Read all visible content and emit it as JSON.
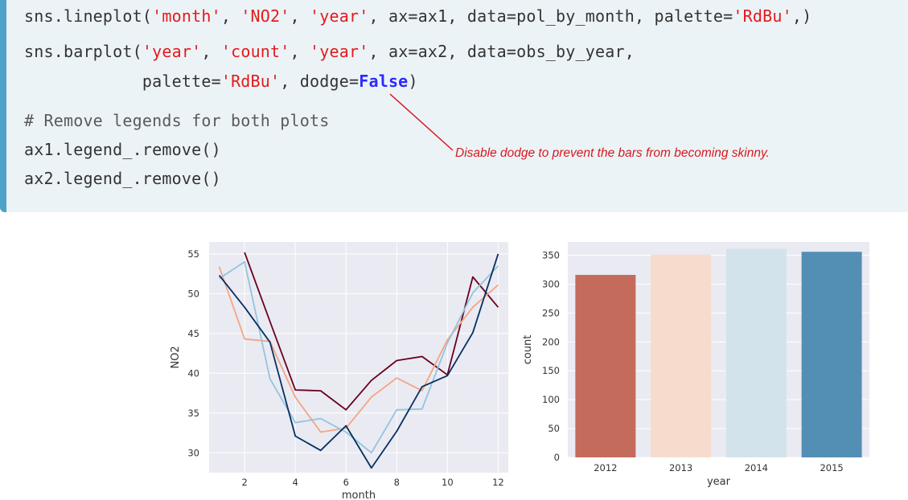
{
  "code": {
    "line1": {
      "p1": "sns.lineplot(",
      "s1": "'month'",
      "p2": ", ",
      "s2": "'NO2'",
      "p3": ", ",
      "s3": "'year'",
      "p4": ", ax=ax1, data=pol_by_month, palette=",
      "s4": "'RdBu'",
      "p5": ",)"
    },
    "line2": {
      "p1": "sns.barplot(",
      "s1": "'year'",
      "p2": ", ",
      "s2": "'count'",
      "p3": ", ",
      "s3": "'year'",
      "p4": ", ax=ax2, data=obs_by_year,"
    },
    "line3": {
      "indent": "            palette=",
      "s1": "'RdBu'",
      "p2": ", dodge=",
      "kw": "False",
      "p3": ")"
    },
    "line4": "# Remove legends for both plots",
    "line5": "ax1.legend_.remove()",
    "line6": "ax2.legend_.remove()"
  },
  "annotation": {
    "text": "Disable dodge to prevent the bars from becoming skinny.",
    "color": "#d7191c"
  },
  "chart_data": [
    {
      "type": "line",
      "xlabel": "month",
      "ylabel": "NO2",
      "xlim": [
        0.6,
        12.4
      ],
      "ylim": [
        27.5,
        56.5
      ],
      "xticks": [
        2,
        4,
        6,
        8,
        10,
        12
      ],
      "yticks": [
        30,
        35,
        40,
        45,
        50,
        55
      ],
      "grid": true,
      "legend": "none",
      "x": [
        1,
        2,
        3,
        4,
        5,
        6,
        7,
        8,
        9,
        10,
        11,
        12
      ],
      "series": [
        {
          "color": "#67001f",
          "values": [
            null,
            55.2,
            46.5,
            37.9,
            37.8,
            35.4,
            39.1,
            41.6,
            42.1,
            39.8,
            52.1,
            48.3
          ]
        },
        {
          "color": "#f4a582",
          "values": [
            53.4,
            44.3,
            44.0,
            37.0,
            32.6,
            33.1,
            37.0,
            39.4,
            37.8,
            44.2,
            48.3,
            51.1
          ]
        },
        {
          "color": "#92c5de",
          "values": [
            51.9,
            54.0,
            39.3,
            33.8,
            34.3,
            32.6,
            30.0,
            35.4,
            35.5,
            43.8,
            50.1,
            53.5
          ]
        },
        {
          "color": "#053061",
          "values": [
            52.3,
            48.3,
            43.9,
            32.1,
            30.3,
            33.4,
            28.1,
            32.7,
            38.3,
            39.7,
            45.1,
            55.0
          ]
        }
      ]
    },
    {
      "type": "bar",
      "xlabel": "year",
      "ylabel": "count",
      "ylim": [
        0,
        373
      ],
      "yticks": [
        0,
        50,
        100,
        150,
        200,
        250,
        300,
        350
      ],
      "grid": true,
      "legend": "none",
      "categories": [
        "2012",
        "2013",
        "2014",
        "2015"
      ],
      "values": [
        316,
        351,
        361,
        356
      ],
      "colors": [
        "#c46b5c",
        "#f7dccd",
        "#d3e3ec",
        "#538fb5"
      ]
    }
  ]
}
